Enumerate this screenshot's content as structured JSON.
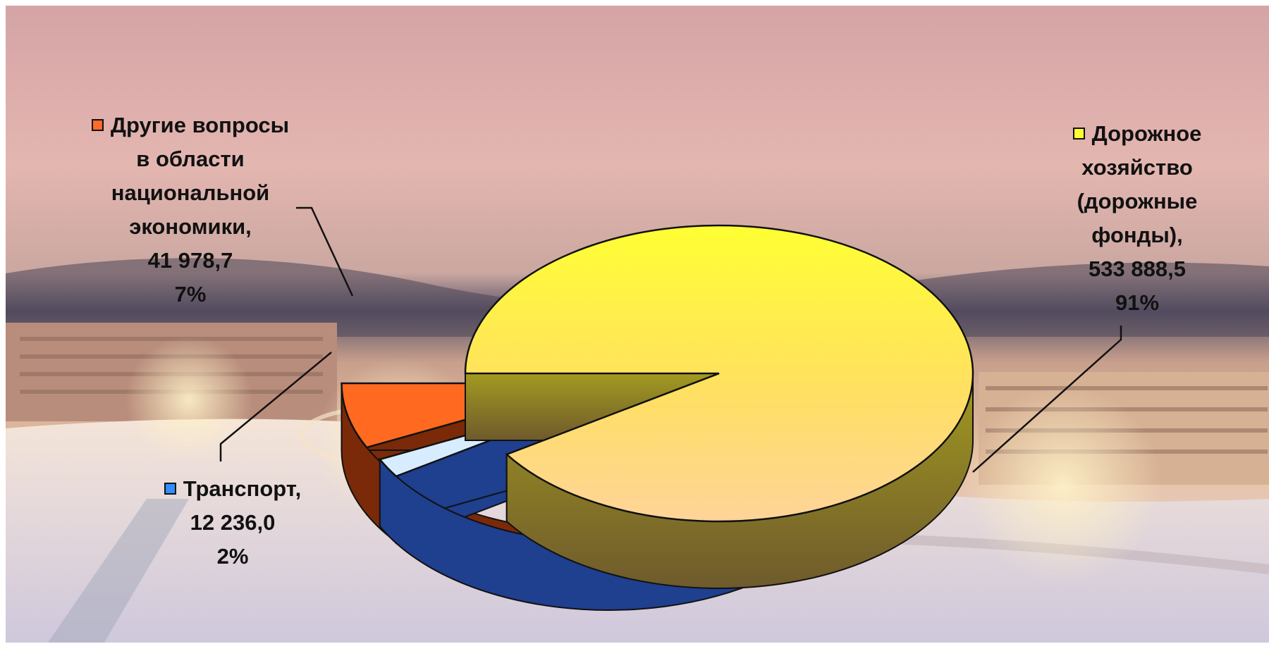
{
  "chart_data": {
    "type": "pie",
    "title": "",
    "slices": [
      {
        "name": "Дорожное хозяйство (дорожные фонды)",
        "value": 533888.5,
        "value_label": "533 888,5",
        "percent": 91,
        "percent_label": "91%",
        "color": "#ffff33",
        "shade": "#8a8a10",
        "swatch": "#ffff33"
      },
      {
        "name": "Транспорт",
        "value": 12236.0,
        "value_label": "12 236,0",
        "percent": 2,
        "percent_label": "2%",
        "color": "#d8ecff",
        "shade": "#1f3f8f",
        "swatch": "#2f8fff"
      },
      {
        "name": "Другие вопросы в области национальной экономики",
        "value": 41978.7,
        "value_label": "41 978,7",
        "percent": 7,
        "percent_label": "7%",
        "color": "#ff6a20",
        "shade": "#7a2a08",
        "swatch": "#ff6a2a"
      }
    ],
    "exploded": true,
    "three_d": true
  },
  "labels": {
    "roads": {
      "lines": [
        "Дорожное",
        "хозяйство",
        "(дорожные",
        "фонды),",
        "533 888,5",
        "91%"
      ]
    },
    "transport": {
      "lines": [
        "Транспорт,",
        "12 236,0",
        "2%"
      ]
    },
    "other": {
      "lines": [
        "Другие вопросы",
        "в области",
        "национальной",
        "экономики,",
        "41 978,7",
        "7%"
      ]
    }
  }
}
